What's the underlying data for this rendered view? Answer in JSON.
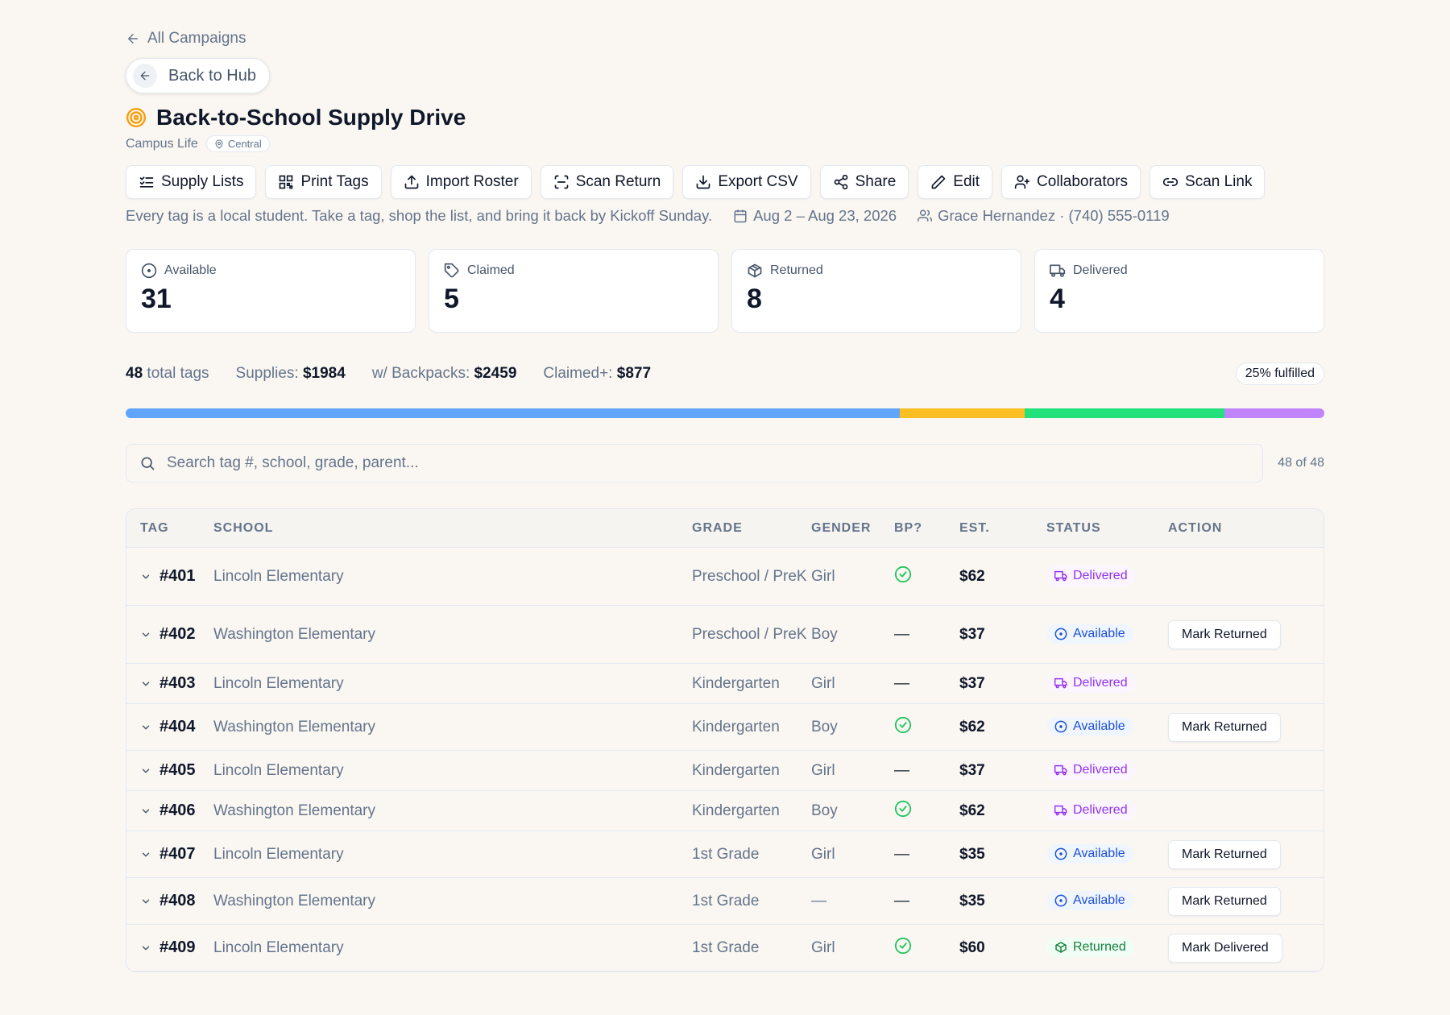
{
  "nav": {
    "all_campaigns": "All Campaigns",
    "back_to_hub": "Back to Hub"
  },
  "campaign": {
    "title": "Back-to-School Supply Drive",
    "group": "Campus Life",
    "location": "Central",
    "description": "Every tag is a local student. Take a tag, shop the list, and bring it back by Kickoff Sunday.",
    "dates": "Aug 2 – Aug 23, 2026",
    "contact": "Grace Hernandez · (740) 555-0119"
  },
  "toolbar": {
    "supply_lists": "Supply Lists",
    "print_tags": "Print Tags",
    "import_roster": "Import Roster",
    "scan_return": "Scan Return",
    "export_csv": "Export CSV",
    "share": "Share",
    "edit": "Edit",
    "collaborators": "Collaborators",
    "scan_link": "Scan Link"
  },
  "stats": {
    "available": {
      "label": "Available",
      "value": "31"
    },
    "claimed": {
      "label": "Claimed",
      "value": "5"
    },
    "returned": {
      "label": "Returned",
      "value": "8"
    },
    "delivered": {
      "label": "Delivered",
      "value": "4"
    }
  },
  "summary": {
    "total_count": "48",
    "total_label": "total tags",
    "supplies_label": "Supplies:",
    "supplies_value": "$1984",
    "backpacks_label": "w/ Backpacks:",
    "backpacks_value": "$2459",
    "claimed_label": "Claimed+:",
    "claimed_value": "$877",
    "fulfilled": "25% fulfilled"
  },
  "progress": {
    "available": 31,
    "claimed": 5,
    "returned": 8,
    "delivered": 4,
    "colors": {
      "available": "#60a5fa",
      "claimed": "#fbbf24",
      "returned": "#22e07a",
      "delivered": "#c084fc"
    }
  },
  "search": {
    "placeholder": "Search tag #, school, grade, parent...",
    "count": "48 of 48"
  },
  "table": {
    "headers": {
      "tag": "TAG",
      "school": "SCHOOL",
      "grade": "GRADE",
      "gender": "GENDER",
      "bp": "BP?",
      "est": "EST.",
      "status": "STATUS",
      "action": "ACTION"
    },
    "rows": [
      {
        "tag": "#401",
        "school": "Lincoln Elementary",
        "grade": "Preschool / PreK",
        "gender": "Girl",
        "bp": true,
        "est": "$62",
        "status": "Delivered",
        "action": ""
      },
      {
        "tag": "#402",
        "school": "Washington Elementary",
        "grade": "Preschool / PreK",
        "gender": "Boy",
        "bp": false,
        "est": "$37",
        "status": "Available",
        "action": "Mark Returned"
      },
      {
        "tag": "#403",
        "school": "Lincoln Elementary",
        "grade": "Kindergarten",
        "gender": "Girl",
        "bp": false,
        "est": "$37",
        "status": "Delivered",
        "action": ""
      },
      {
        "tag": "#404",
        "school": "Washington Elementary",
        "grade": "Kindergarten",
        "gender": "Boy",
        "bp": true,
        "est": "$62",
        "status": "Available",
        "action": "Mark Returned"
      },
      {
        "tag": "#405",
        "school": "Lincoln Elementary",
        "grade": "Kindergarten",
        "gender": "Girl",
        "bp": false,
        "est": "$37",
        "status": "Delivered",
        "action": ""
      },
      {
        "tag": "#406",
        "school": "Washington Elementary",
        "grade": "Kindergarten",
        "gender": "Boy",
        "bp": true,
        "est": "$62",
        "status": "Delivered",
        "action": ""
      },
      {
        "tag": "#407",
        "school": "Lincoln Elementary",
        "grade": "1st Grade",
        "gender": "Girl",
        "bp": false,
        "est": "$35",
        "status": "Available",
        "action": "Mark Returned"
      },
      {
        "tag": "#408",
        "school": "Washington Elementary",
        "grade": "1st Grade",
        "gender": "—",
        "bp": false,
        "est": "$35",
        "status": "Available",
        "action": "Mark Returned"
      },
      {
        "tag": "#409",
        "school": "Lincoln Elementary",
        "grade": "1st Grade",
        "gender": "Girl",
        "bp": true,
        "est": "$60",
        "status": "Returned",
        "action": "Mark Delivered"
      }
    ]
  },
  "dash": "—"
}
